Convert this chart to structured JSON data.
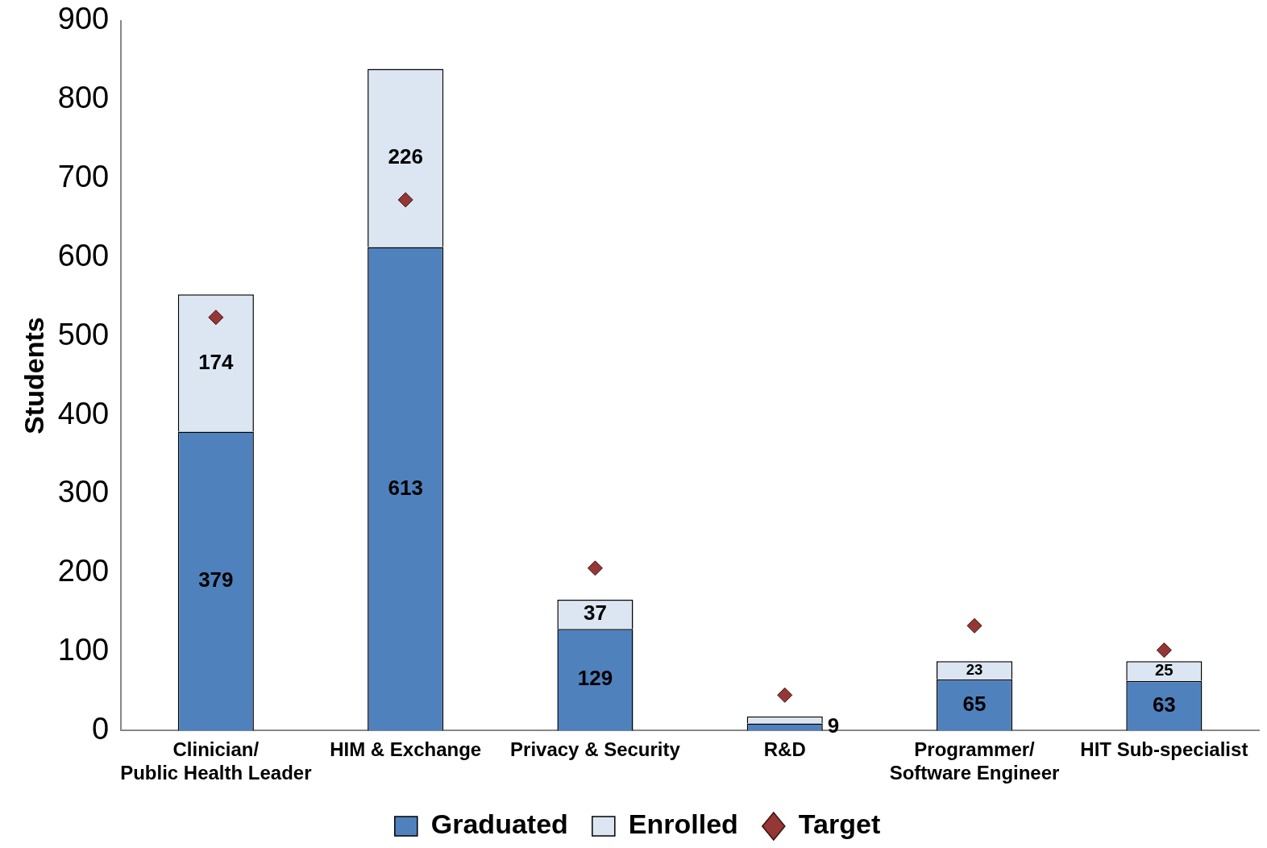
{
  "chart_data": {
    "type": "bar",
    "stacked": true,
    "ylabel": "Students",
    "categories": [
      "Clinician/ Public Health Leader",
      "HIM & Exchange",
      "Privacy & Security",
      "R&D",
      "Programmer/ Software Engineer",
      "HIT Sub-specialist"
    ],
    "series": [
      {
        "name": "Graduated",
        "color": "#4f81bd",
        "values": [
          379,
          613,
          129,
          9,
          65,
          63
        ],
        "value_labels": [
          "379",
          "613",
          "129",
          "9",
          "65",
          "63"
        ]
      },
      {
        "name": "Enrolled",
        "color": "#dce6f2",
        "values": [
          174,
          226,
          37,
          9,
          23,
          25
        ],
        "value_labels": [
          "174",
          "226",
          "37",
          null,
          "23",
          "25"
        ]
      },
      {
        "name": "Target",
        "type": "scatter",
        "color": "#953735",
        "marker": "diamond",
        "x": [
          "Clinician/ Public Health Leader",
          "HIM & Exchange",
          "Privacy & Security",
          "R&D",
          "Programmer/ Software Engineer",
          "HIT Sub-specialist"
        ],
        "values": [
          524,
          673,
          206,
          45,
          133,
          102
        ]
      }
    ],
    "ylim": [
      0,
      900
    ],
    "yticks": [
      0,
      100,
      200,
      300,
      400,
      500,
      600,
      700,
      800,
      900
    ],
    "grid": false,
    "legend": "bottom"
  }
}
